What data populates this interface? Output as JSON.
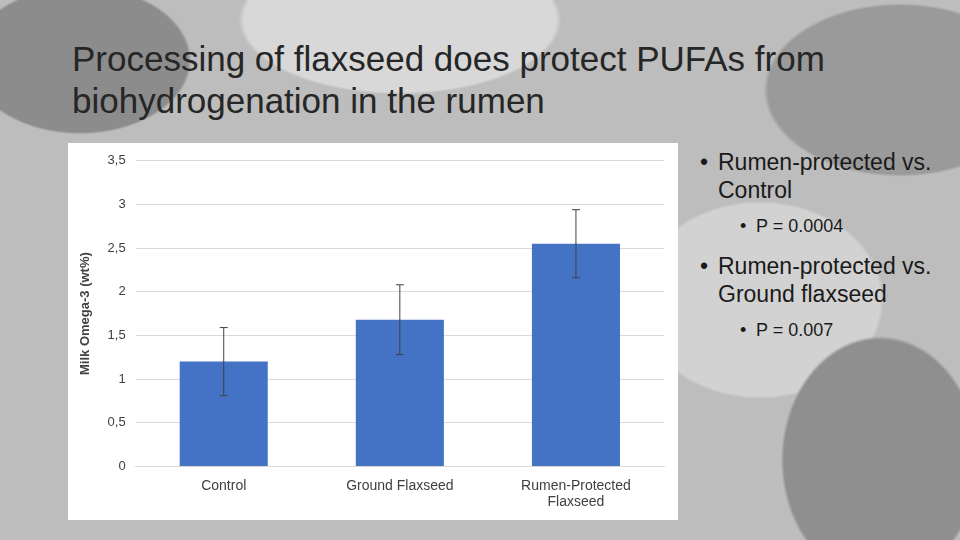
{
  "chart_data": {
    "type": "bar",
    "title": "Processing of flaxseed does protect PUFAs from biohydrogenation in the rumen",
    "y_label": "Milk Omega-3 (wt%)",
    "categories": [
      "Control",
      "Ground Flaxseed",
      "Rumen-Protected Flaxseed"
    ],
    "values": [
      1.2,
      1.68,
      2.55
    ],
    "errors": [
      0.39,
      0.4,
      0.39
    ],
    "color": "#4472c4",
    "ylim": [
      0,
      3.5
    ],
    "yticks": [
      0,
      {
        "value": 0.5,
        "label": "0,5"
      },
      1,
      {
        "value": 1.5,
        "label": "1,5"
      },
      2,
      {
        "value": 2.5,
        "label": "2,5"
      },
      3,
      {
        "value": 3.5,
        "label": "3,5"
      }
    ],
    "grid": true,
    "annotations": [
      {
        "text": "Rumen-protected vs. Control",
        "sub": "P = 0.0004"
      },
      {
        "text": "Rumen-protected vs. Ground flaxseed",
        "sub": "P = 0.007"
      }
    ]
  }
}
